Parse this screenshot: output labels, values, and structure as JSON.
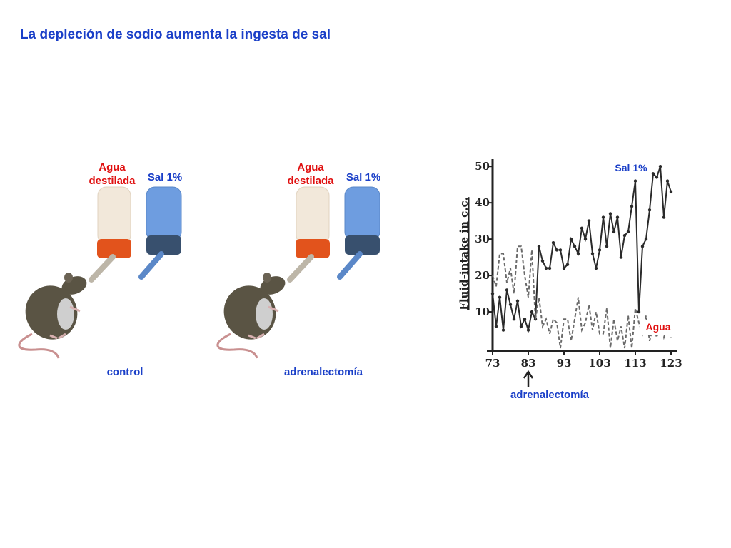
{
  "title": "La depleción de sodio aumenta la ingesta de sal",
  "panels": [
    {
      "water_label": "Agua destilada",
      "salt_label": "Sal 1%",
      "caption": "control"
    },
    {
      "water_label": "Agua destilada",
      "salt_label": "Sal 1%",
      "caption": "adrenalectomía"
    }
  ],
  "chart_data": {
    "type": "line",
    "y_label": "Fluid-intake in c.c.",
    "x": [
      73,
      74,
      75,
      76,
      77,
      78,
      79,
      80,
      81,
      82,
      83,
      84,
      85,
      86,
      87,
      88,
      89,
      90,
      91,
      92,
      93,
      94,
      95,
      96,
      97,
      98,
      99,
      100,
      101,
      102,
      103,
      104,
      105,
      106,
      107,
      108,
      109,
      110,
      111,
      112,
      113,
      114,
      115,
      116,
      117,
      118,
      119,
      120,
      121,
      122,
      123
    ],
    "series": [
      {
        "name": "Sal 1%",
        "color": "#2a2a2a",
        "label_color": "#1a3fc8",
        "dashed": false,
        "markers": true,
        "values": [
          15,
          6,
          14,
          5,
          16,
          12,
          8,
          13,
          6,
          8,
          5,
          10,
          8,
          28,
          24,
          22,
          22,
          29,
          27,
          27,
          22,
          23,
          30,
          28,
          26,
          33,
          30,
          35,
          26,
          22,
          27,
          36,
          28,
          37,
          32,
          36,
          25,
          31,
          32,
          39,
          46,
          10,
          28,
          30,
          38,
          48,
          47,
          50,
          36,
          46,
          43
        ]
      },
      {
        "name": "Agua",
        "color": "#6a6a6a",
        "label_color": "#e01010",
        "dashed": true,
        "markers": false,
        "values": [
          20,
          17,
          26,
          26,
          18,
          22,
          15,
          28,
          28,
          20,
          14,
          27,
          8,
          14,
          6,
          8,
          4,
          8,
          7,
          0,
          8,
          8,
          2,
          8,
          14,
          5,
          7,
          12,
          5,
          10,
          4,
          4,
          11,
          0,
          8,
          2,
          6,
          0,
          9,
          0,
          11,
          7,
          4,
          9,
          2,
          6,
          3,
          7,
          3,
          6,
          3
        ]
      }
    ],
    "xlim": [
      73,
      123
    ],
    "xticks": [
      73,
      83,
      93,
      103,
      113,
      123
    ],
    "ylim": [
      0,
      52
    ],
    "yticks": [
      10,
      20,
      30,
      40,
      50
    ],
    "annotation": {
      "text": "adrenalectomía",
      "x": 83
    }
  }
}
